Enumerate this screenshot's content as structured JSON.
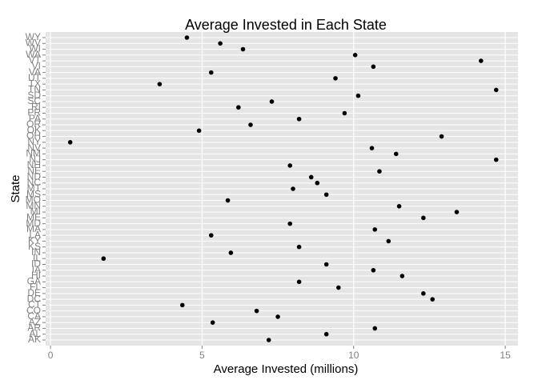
{
  "chart_data": {
    "type": "dot",
    "title": "Average Invested in Each State",
    "x_label": "Average Invested (millions)",
    "y_label": "State",
    "categories": [
      "AK",
      "AL",
      "AR",
      "AZ",
      "CA",
      "CO",
      "CT",
      "DC",
      "DE",
      "FL",
      "GA",
      "HI",
      "IA",
      "ID",
      "IL",
      "IN",
      "KS",
      "KY",
      "LA",
      "MA",
      "MD",
      "ME",
      "MI",
      "MN",
      "MO",
      "MS",
      "MT",
      "NC",
      "ND",
      "NE",
      "NH",
      "NJ",
      "NM",
      "NV",
      "NY",
      "OH",
      "OK",
      "OR",
      "PA",
      "PR",
      "RI",
      "SC",
      "SD",
      "TN",
      "TX",
      "UT",
      "VA",
      "VI",
      "VT",
      "WA",
      "WI",
      "WV",
      "WY"
    ],
    "values": [
      7.2,
      9.1,
      10.7,
      5.35,
      7.5,
      6.8,
      4.35,
      12.6,
      12.3,
      9.5,
      8.2,
      11.6,
      10.65,
      9.1,
      1.75,
      5.95,
      8.2,
      11.15,
      5.3,
      10.7,
      7.9,
      12.3,
      13.4,
      11.5,
      5.85,
      9.1,
      8.0,
      8.8,
      8.6,
      10.85,
      7.9,
      14.7,
      11.4,
      10.6,
      0.65,
      12.9,
      4.9,
      6.6,
      8.2,
      9.7,
      6.2,
      7.3,
      10.15,
      14.7,
      3.6,
      9.4,
      5.3,
      10.65,
      14.2,
      10.05,
      6.35,
      5.6,
      4.5
    ],
    "color": "#000000",
    "xlim": [
      -0.16,
      15.42
    ],
    "xticks": [
      0,
      5,
      10,
      15
    ],
    "grid": true
  }
}
